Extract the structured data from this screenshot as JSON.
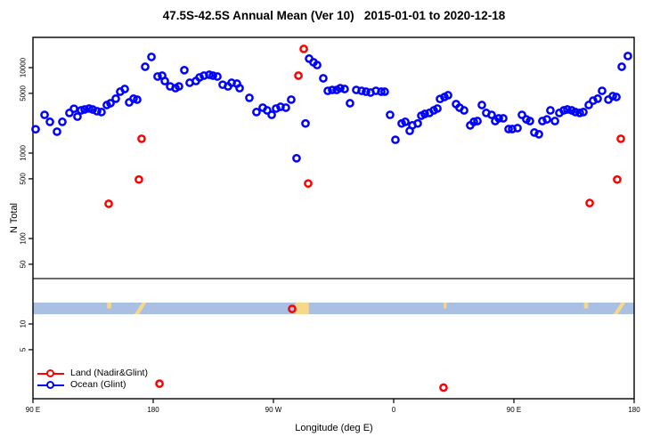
{
  "chart_data": {
    "type": "scatter",
    "title": "47.5S-42.5S Annual Mean (Ver 10)   2015-01-01 to 2020-12-18",
    "xlabel": "Longitude (deg E)",
    "ylabel": "N Total",
    "x_axis": {
      "range_deg": [
        0,
        450
      ],
      "ticks": [
        {
          "pos": 0,
          "label": "90 E"
        },
        {
          "pos": 90,
          "label": "180"
        },
        {
          "pos": 180,
          "label": "90 W"
        },
        {
          "pos": 270,
          "label": "0"
        },
        {
          "pos": 360,
          "label": "90 E"
        },
        {
          "pos": 450,
          "label": "180"
        }
      ]
    },
    "y_axis": {
      "scale": "log10",
      "log_range": [
        0.125,
        4.354
      ],
      "ticks": [
        5,
        10,
        50,
        100,
        500,
        1000,
        5000,
        10000
      ]
    },
    "divider_value": 34,
    "map_band": {
      "value_top": 17.8,
      "value_bottom": 13,
      "ocean_color": "#a9c0e2",
      "land_color": "#f6d88d",
      "land_patches": [
        {
          "x0": 55.5,
          "x1": 58.5,
          "shape": "dot"
        },
        {
          "x0": 76.0,
          "x1": 85.0,
          "shape": "streak"
        },
        {
          "x0": 196.5,
          "x1": 206.5,
          "shape": "block"
        },
        {
          "x0": 307.5,
          "x1": 309.5,
          "shape": "dot"
        },
        {
          "x0": 412.5,
          "x1": 415.5,
          "shape": "dot"
        },
        {
          "x0": 434.5,
          "x1": 443.5,
          "shape": "streak"
        }
      ]
    },
    "series": [
      {
        "name": "Land (Nadir&Glint)",
        "color": "#ff0000",
        "points": [
          [
            56.7,
            255
          ],
          [
            79.3,
            490
          ],
          [
            81.3,
            1470
          ],
          [
            94.7,
            2
          ],
          [
            194,
            15
          ],
          [
            198.7,
            8060
          ],
          [
            202.7,
            16560
          ],
          [
            206,
            440
          ],
          [
            307.3,
            1.8
          ],
          [
            416.7,
            260
          ],
          [
            437.3,
            490
          ],
          [
            440,
            1470
          ]
        ]
      },
      {
        "name": "Ocean (Glint)",
        "color": "#0000ff",
        "points": [
          [
            2,
            1900
          ],
          [
            8.7,
            2800
          ],
          [
            12.7,
            2320
          ],
          [
            18,
            1780
          ],
          [
            22,
            2320
          ],
          [
            27.3,
            2950
          ],
          [
            30.7,
            3300
          ],
          [
            33.3,
            2670
          ],
          [
            36,
            3160
          ],
          [
            38.7,
            3240
          ],
          [
            42,
            3320
          ],
          [
            44.7,
            3240
          ],
          [
            48,
            3090
          ],
          [
            51.3,
            3020
          ],
          [
            55.3,
            3650
          ],
          [
            58,
            3830
          ],
          [
            62,
            4330
          ],
          [
            65.3,
            5230
          ],
          [
            68.7,
            5620
          ],
          [
            72,
            3920
          ],
          [
            75.3,
            4330
          ],
          [
            78,
            4220
          ],
          [
            84,
            10240
          ],
          [
            88.7,
            13340
          ],
          [
            93.3,
            7870
          ],
          [
            96.7,
            8060
          ],
          [
            98.7,
            6970
          ],
          [
            102.7,
            6030
          ],
          [
            106.7,
            5750
          ],
          [
            109.3,
            6030
          ],
          [
            113.3,
            9350
          ],
          [
            117.3,
            6650
          ],
          [
            122,
            6970
          ],
          [
            124.7,
            7690
          ],
          [
            128,
            8060
          ],
          [
            132,
            8250
          ],
          [
            134.7,
            8060
          ],
          [
            138,
            7870
          ],
          [
            142,
            6310
          ],
          [
            146,
            6030
          ],
          [
            148.7,
            6650
          ],
          [
            152.7,
            6490
          ],
          [
            154.7,
            5750
          ],
          [
            162,
            4430
          ],
          [
            167.3,
            3020
          ],
          [
            172,
            3400
          ],
          [
            175.3,
            3160
          ],
          [
            178.7,
            2800
          ],
          [
            182,
            3320
          ],
          [
            185.3,
            3480
          ],
          [
            189.3,
            3400
          ],
          [
            193.3,
            4220
          ],
          [
            197.3,
            870
          ],
          [
            204,
            2220
          ],
          [
            206.7,
            12740
          ],
          [
            210,
            11550
          ],
          [
            212.7,
            10720
          ],
          [
            217.3,
            7500
          ],
          [
            220.7,
            5350
          ],
          [
            224,
            5480
          ],
          [
            227.3,
            5480
          ],
          [
            230,
            5750
          ],
          [
            233.3,
            5620
          ],
          [
            237.3,
            3830
          ],
          [
            242,
            5480
          ],
          [
            246,
            5350
          ],
          [
            249.3,
            5230
          ],
          [
            252.7,
            5110
          ],
          [
            256.7,
            5350
          ],
          [
            260.7,
            5230
          ],
          [
            263.3,
            5230
          ],
          [
            267.3,
            2800
          ],
          [
            271.3,
            1430
          ],
          [
            276,
            2220
          ],
          [
            278.7,
            2320
          ],
          [
            282,
            1820
          ],
          [
            284,
            2110
          ],
          [
            288,
            2220
          ],
          [
            290.7,
            2740
          ],
          [
            293.3,
            2870
          ],
          [
            296.7,
            2950
          ],
          [
            300,
            3160
          ],
          [
            302.7,
            3320
          ],
          [
            304.7,
            4300
          ],
          [
            308,
            4530
          ],
          [
            310.7,
            4750
          ],
          [
            316.7,
            3740
          ],
          [
            319.3,
            3400
          ],
          [
            322.7,
            3160
          ],
          [
            327.3,
            2110
          ],
          [
            330,
            2320
          ],
          [
            332.7,
            2370
          ],
          [
            336,
            3650
          ],
          [
            339.3,
            2950
          ],
          [
            343.3,
            2800
          ],
          [
            346,
            2370
          ],
          [
            348.7,
            2550
          ],
          [
            352,
            2550
          ],
          [
            356,
            1910
          ],
          [
            358.7,
            1910
          ],
          [
            362.7,
            1960
          ],
          [
            366,
            2800
          ],
          [
            369.3,
            2480
          ],
          [
            372,
            2370
          ],
          [
            375.3,
            1740
          ],
          [
            378.7,
            1660
          ],
          [
            381.3,
            2370
          ],
          [
            384.7,
            2480
          ],
          [
            387.3,
            3160
          ],
          [
            390.7,
            2370
          ],
          [
            394,
            2950
          ],
          [
            397.3,
            3160
          ],
          [
            400,
            3240
          ],
          [
            403.3,
            3160
          ],
          [
            406,
            3020
          ],
          [
            409.3,
            2950
          ],
          [
            412,
            3020
          ],
          [
            416,
            3650
          ],
          [
            419.3,
            4110
          ],
          [
            422.7,
            4330
          ],
          [
            426,
            5350
          ],
          [
            430.7,
            4220
          ],
          [
            434,
            4640
          ],
          [
            436.7,
            4530
          ],
          [
            440.7,
            10240
          ],
          [
            445.3,
            13670
          ]
        ]
      }
    ],
    "legend": {
      "position": "bottom-left",
      "entries": [
        "Land (Nadir&Glint)",
        "Ocean (Glint)"
      ]
    }
  }
}
